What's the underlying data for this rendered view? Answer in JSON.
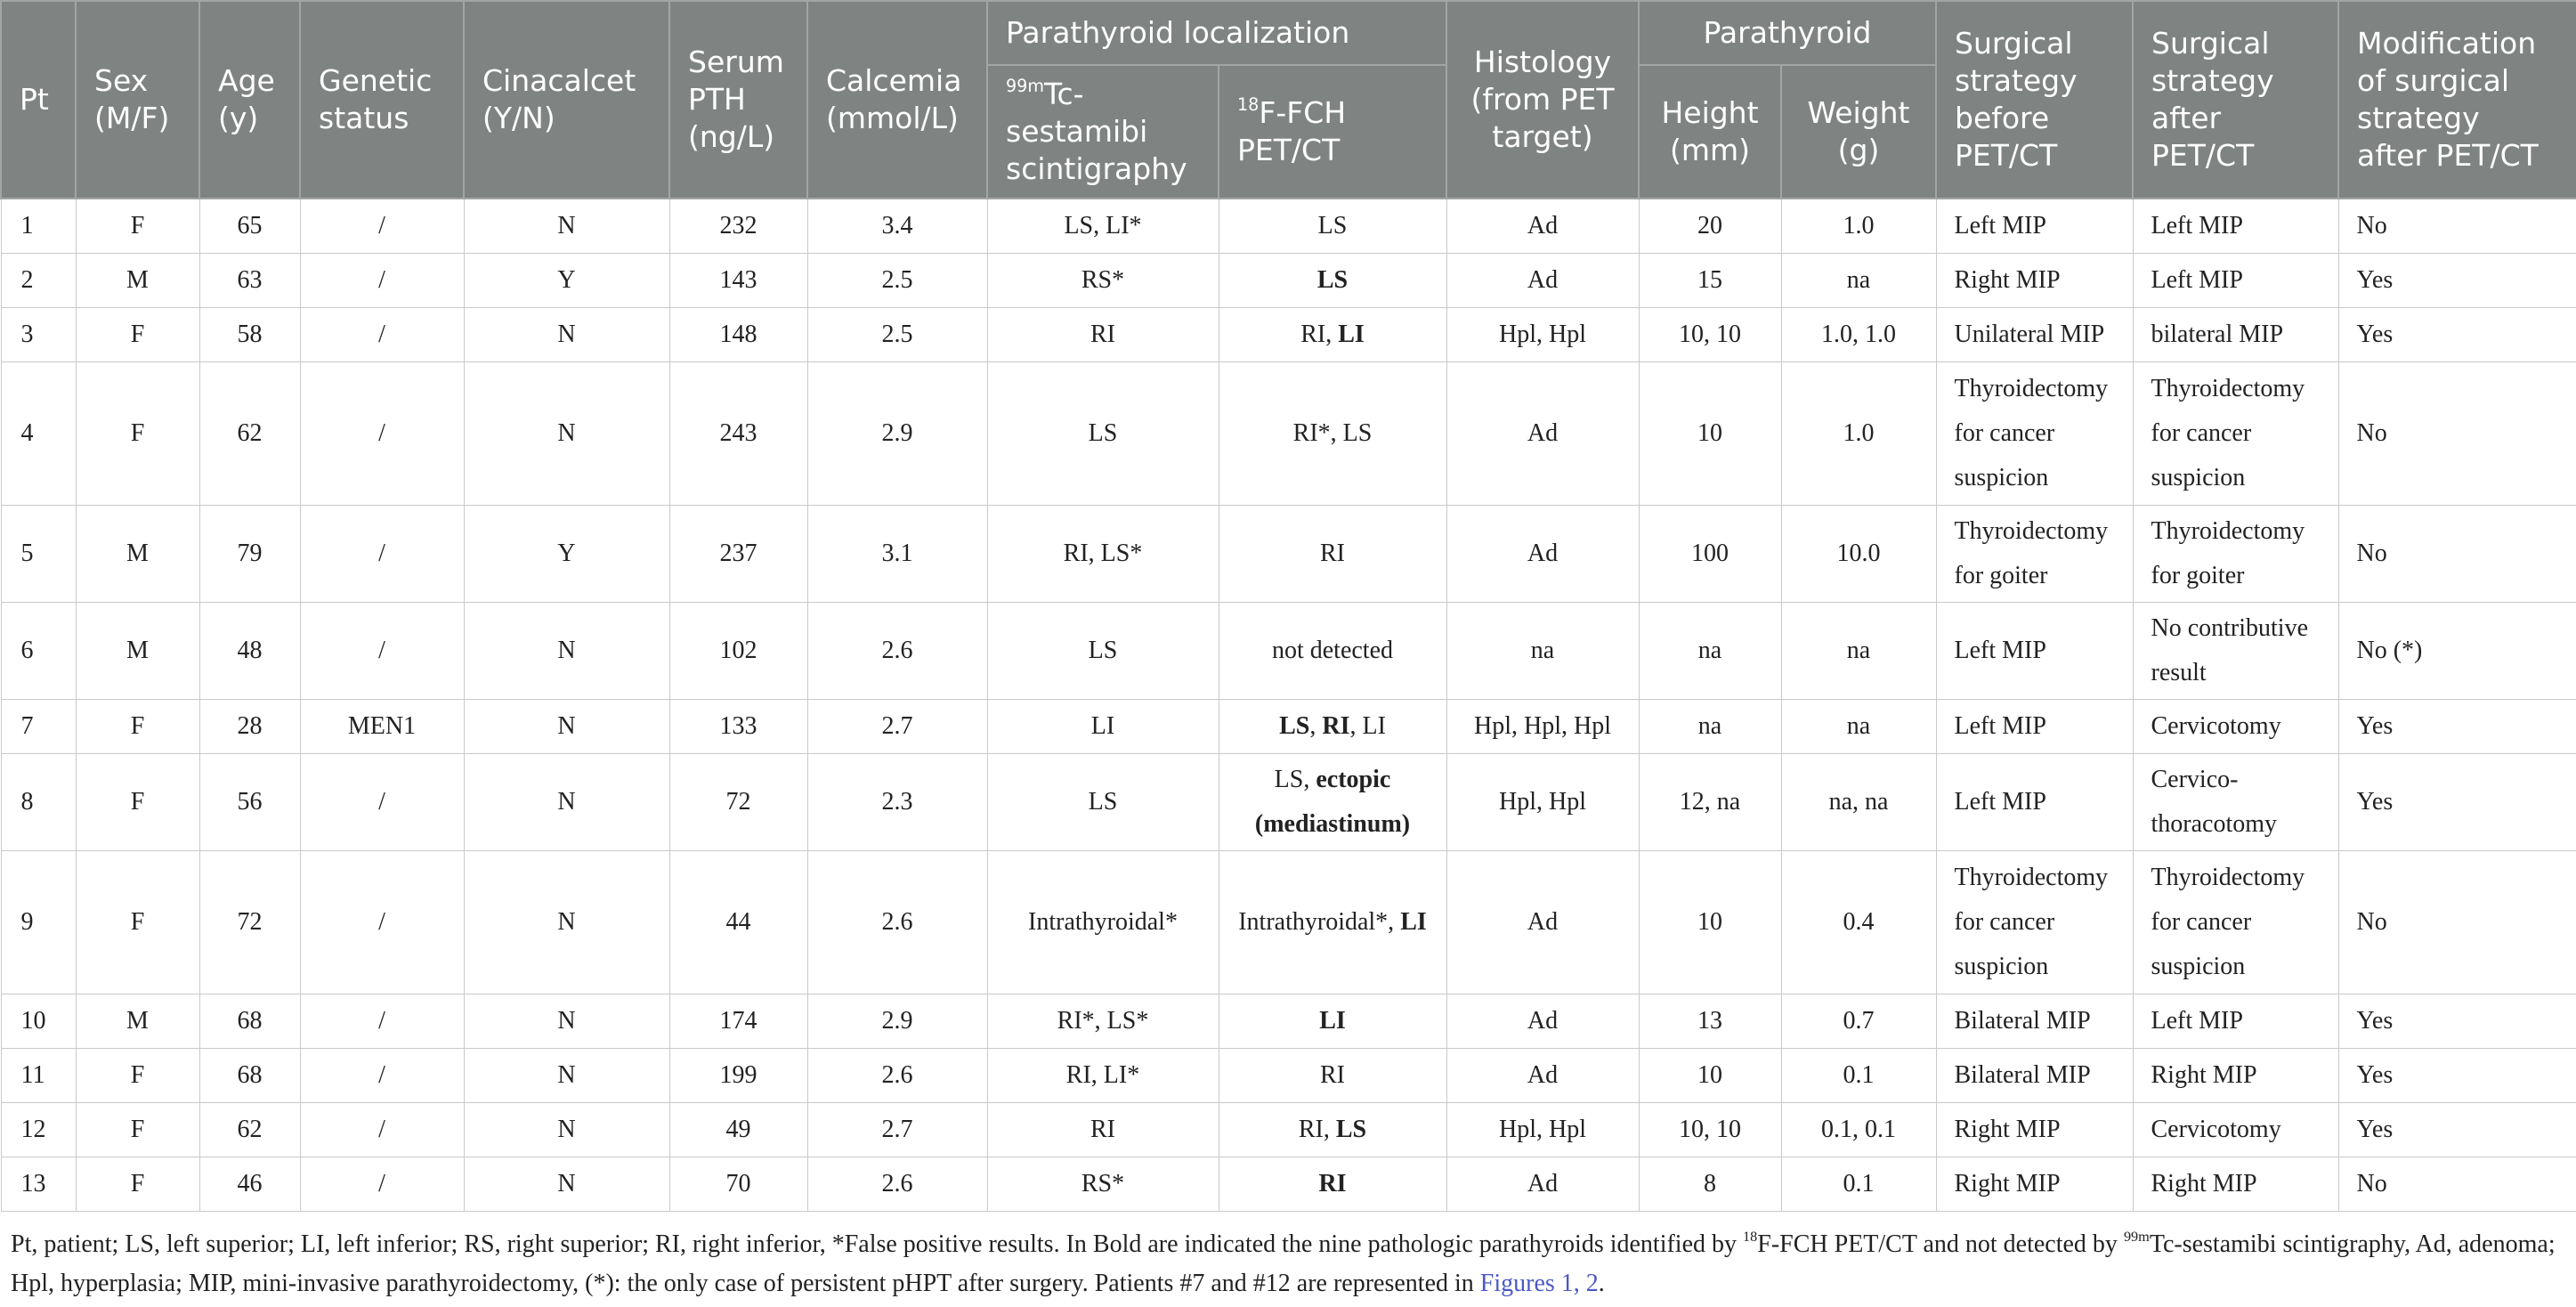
{
  "header": {
    "pt": "Pt",
    "sex": "Sex (M/F)",
    "age": "Age (y)",
    "genetic": "Genetic status",
    "cinacalcet": "Cinacalcet (Y/N)",
    "pth": "Serum PTH (ng/L)",
    "calcemia": "Calcemia (mmol/L)",
    "localization": "Parathyroid localization",
    "scinti_sup": "99m",
    "scinti": "Tc-sestamibi scintigraphy",
    "pet_sup": "18",
    "pet": "F-FCH PET/CT",
    "histology": "Histology (from PET target)",
    "parathyroid": "Parathyroid",
    "height": "Height (mm)",
    "weight": "Weight (g)",
    "before": "Surgical strategy before PET/CT",
    "after": "Surgical strategy after PET/CT",
    "modification": "Modification of surgical strategy after PET/CT"
  },
  "rows": [
    {
      "pt": "1",
      "sex": "F",
      "age": "65",
      "genetic": "/",
      "cinacalcet": "N",
      "pth": "232",
      "calcemia": "3.4",
      "scinti": "LS, LI*",
      "pet": [
        {
          "t": "LS"
        }
      ],
      "histology": "Ad",
      "height": "20",
      "weight": "1.0",
      "before": "Left MIP",
      "after": "Left MIP",
      "modification": "No"
    },
    {
      "pt": "2",
      "sex": "M",
      "age": "63",
      "genetic": "/",
      "cinacalcet": "Y",
      "pth": "143",
      "calcemia": "2.5",
      "scinti": "RS*",
      "pet": [
        {
          "t": "LS",
          "b": true
        }
      ],
      "histology": "Ad",
      "height": "15",
      "weight": "na",
      "before": "Right MIP",
      "after": "Left MIP",
      "modification": "Yes"
    },
    {
      "pt": "3",
      "sex": "F",
      "age": "58",
      "genetic": "/",
      "cinacalcet": "N",
      "pth": "148",
      "calcemia": "2.5",
      "scinti": "RI",
      "pet": [
        {
          "t": "RI, "
        },
        {
          "t": "LI",
          "b": true
        }
      ],
      "histology": "Hpl, Hpl",
      "height": "10, 10",
      "weight": "1.0, 1.0",
      "before": "Unilateral MIP",
      "after": "bilateral MIP",
      "modification": "Yes"
    },
    {
      "pt": "4",
      "sex": "F",
      "age": "62",
      "genetic": "/",
      "cinacalcet": "N",
      "pth": "243",
      "calcemia": "2.9",
      "scinti": "LS",
      "pet": [
        {
          "t": "RI*, LS"
        }
      ],
      "histology": "Ad",
      "height": "10",
      "weight": "1.0",
      "before": "Thyroidectomy for cancer suspicion",
      "after": "Thyroidectomy for cancer suspicion",
      "modification": "No"
    },
    {
      "pt": "5",
      "sex": "M",
      "age": "79",
      "genetic": "/",
      "cinacalcet": "Y",
      "pth": "237",
      "calcemia": "3.1",
      "scinti": "RI, LS*",
      "pet": [
        {
          "t": "RI"
        }
      ],
      "histology": "Ad",
      "height": "100",
      "weight": "10.0",
      "before": "Thyroidectomy for goiter",
      "after": "Thyroidectomy for goiter",
      "modification": "No"
    },
    {
      "pt": "6",
      "sex": "M",
      "age": "48",
      "genetic": "/",
      "cinacalcet": "N",
      "pth": "102",
      "calcemia": "2.6",
      "scinti": "LS",
      "pet": [
        {
          "t": "not detected"
        }
      ],
      "histology": "na",
      "height": "na",
      "weight": "na",
      "before": "Left MIP",
      "after": "No contributive result",
      "modification": "No (*)"
    },
    {
      "pt": "7",
      "sex": "F",
      "age": "28",
      "genetic": "MEN1",
      "cinacalcet": "N",
      "pth": "133",
      "calcemia": "2.7",
      "scinti": "LI",
      "pet": [
        {
          "t": "LS",
          "b": true
        },
        {
          "t": ", "
        },
        {
          "t": "RI",
          "b": true
        },
        {
          "t": ", LI"
        }
      ],
      "histology": "Hpl, Hpl, Hpl",
      "height": "na",
      "weight": "na",
      "before": "Left MIP",
      "after": "Cervicotomy",
      "modification": "Yes"
    },
    {
      "pt": "8",
      "sex": "F",
      "age": "56",
      "genetic": "/",
      "cinacalcet": "N",
      "pth": "72",
      "calcemia": "2.3",
      "scinti": "LS",
      "pet": [
        {
          "t": "LS, "
        },
        {
          "t": "ectopic (mediastinum)",
          "b": true
        }
      ],
      "histology": "Hpl, Hpl",
      "height": "12, na",
      "weight": "na, na",
      "before": "Left MIP",
      "after": "Cervico-thoracotomy",
      "modification": "Yes"
    },
    {
      "pt": "9",
      "sex": "F",
      "age": "72",
      "genetic": "/",
      "cinacalcet": "N",
      "pth": "44",
      "calcemia": "2.6",
      "scinti": "Intrathyroidal*",
      "pet": [
        {
          "t": "Intrathyroidal*, "
        },
        {
          "t": "LI",
          "b": true
        }
      ],
      "histology": "Ad",
      "height": "10",
      "weight": "0.4",
      "before": "Thyroidectomy for cancer suspicion",
      "after": "Thyroidectomy for cancer suspicion",
      "modification": "No"
    },
    {
      "pt": "10",
      "sex": "M",
      "age": "68",
      "genetic": "/",
      "cinacalcet": "N",
      "pth": "174",
      "calcemia": "2.9",
      "scinti": "RI*, LS*",
      "pet": [
        {
          "t": "LI",
          "b": true
        }
      ],
      "histology": "Ad",
      "height": "13",
      "weight": "0.7",
      "before": "Bilateral MIP",
      "after": "Left MIP",
      "modification": "Yes"
    },
    {
      "pt": "11",
      "sex": "F",
      "age": "68",
      "genetic": "/",
      "cinacalcet": "N",
      "pth": "199",
      "calcemia": "2.6",
      "scinti": "RI, LI*",
      "pet": [
        {
          "t": "RI"
        }
      ],
      "histology": "Ad",
      "height": "10",
      "weight": "0.1",
      "before": "Bilateral MIP",
      "after": "Right MIP",
      "modification": "Yes"
    },
    {
      "pt": "12",
      "sex": "F",
      "age": "62",
      "genetic": "/",
      "cinacalcet": "N",
      "pth": "49",
      "calcemia": "2.7",
      "scinti": "RI",
      "pet": [
        {
          "t": "RI, "
        },
        {
          "t": "LS",
          "b": true
        }
      ],
      "histology": "Hpl, Hpl",
      "height": "10, 10",
      "weight": "0.1, 0.1",
      "before": "Right MIP",
      "after": "Cervicotomy",
      "modification": "Yes"
    },
    {
      "pt": "13",
      "sex": "F",
      "age": "46",
      "genetic": "/",
      "cinacalcet": "N",
      "pth": "70",
      "calcemia": "2.6",
      "scinti": "RS*",
      "pet": [
        {
          "t": "RI",
          "b": true
        }
      ],
      "histology": "Ad",
      "height": "8",
      "weight": "0.1",
      "before": "Right MIP",
      "after": "Right MIP",
      "modification": "No"
    }
  ],
  "footnote": {
    "part1": "Pt, patient; LS, left superior; LI, left inferior; RS, right superior; RI, right inferior, *False positive results. In Bold are indicated the nine pathologic parathyroids identified by ",
    "sup1": "18",
    "part2": "F-FCH PET/CT and not detected by ",
    "sup2": "99m",
    "part3": "Tc-sestamibi scintigraphy, Ad, adenoma; Hpl, hyperplasia; MIP, mini-invasive parathyroidectomy, (*): the only case of persistent pHPT after surgery. Patients #7 and #12 are represented in ",
    "link": "Figures 1, 2",
    "part4": "."
  }
}
